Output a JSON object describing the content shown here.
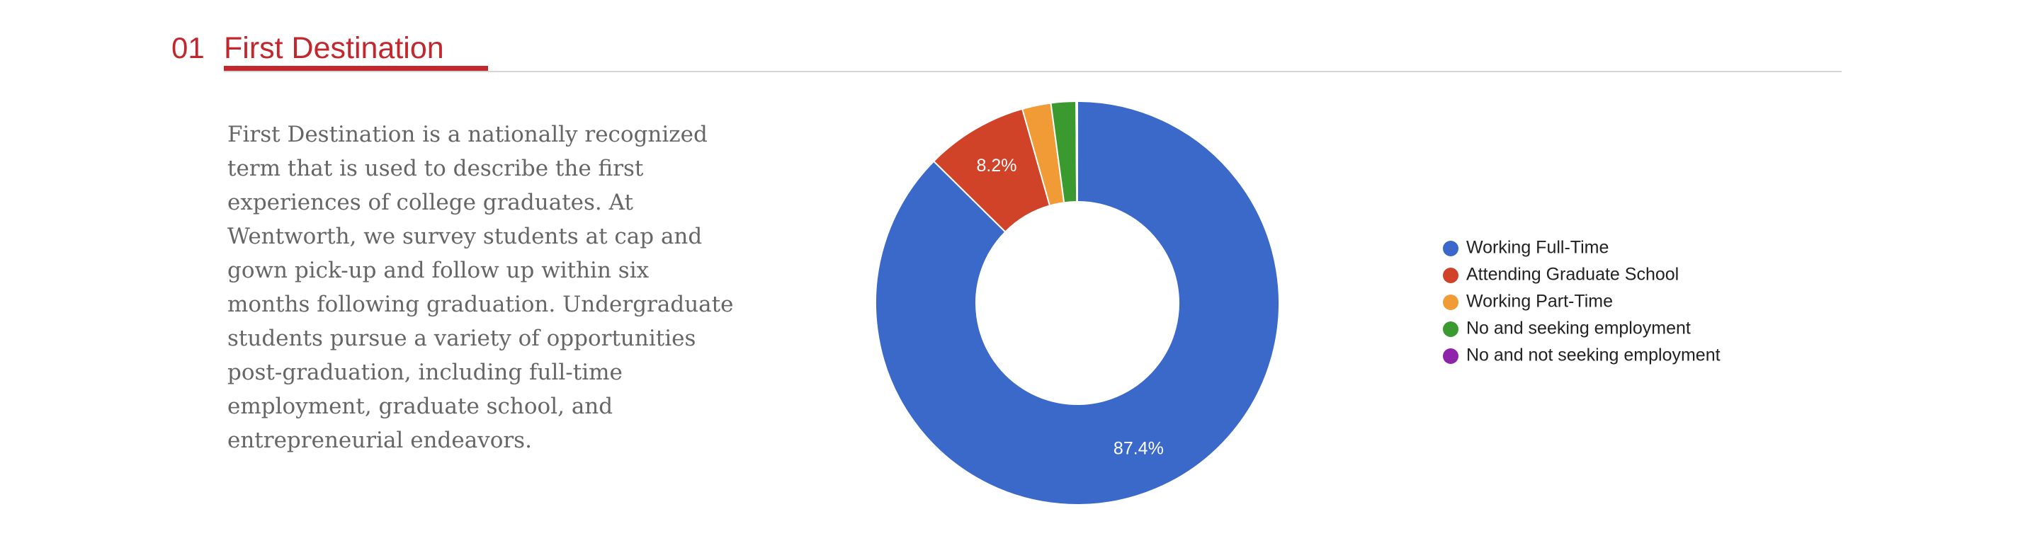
{
  "section": {
    "number": "01",
    "title": "First Destination",
    "text": "First Destination is a nationally recognized term that is used to describe the first experiences of college graduates.  At Wentworth, we survey students at cap and gown pick-up and follow up within six months following graduation. Undergraduate students pursue a variety of opportunities post-graduation, including full-time employment, graduate school, and entrepreneurial endeavors."
  },
  "chart_data": {
    "type": "donut",
    "categories": [
      "Working Full-Time",
      "Attending Graduate School",
      "Working Part-Time",
      "No and seeking employment",
      "No and not seeking employment"
    ],
    "values": [
      87.4,
      8.2,
      2.3,
      2.0,
      0.1
    ],
    "value_labels": [
      "87.4%",
      "8.2%",
      null,
      null,
      null
    ],
    "colors": [
      "#3b69c9",
      "#d04328",
      "#f09b36",
      "#3a9a2f",
      "#8e24aa"
    ],
    "legend": "right"
  }
}
